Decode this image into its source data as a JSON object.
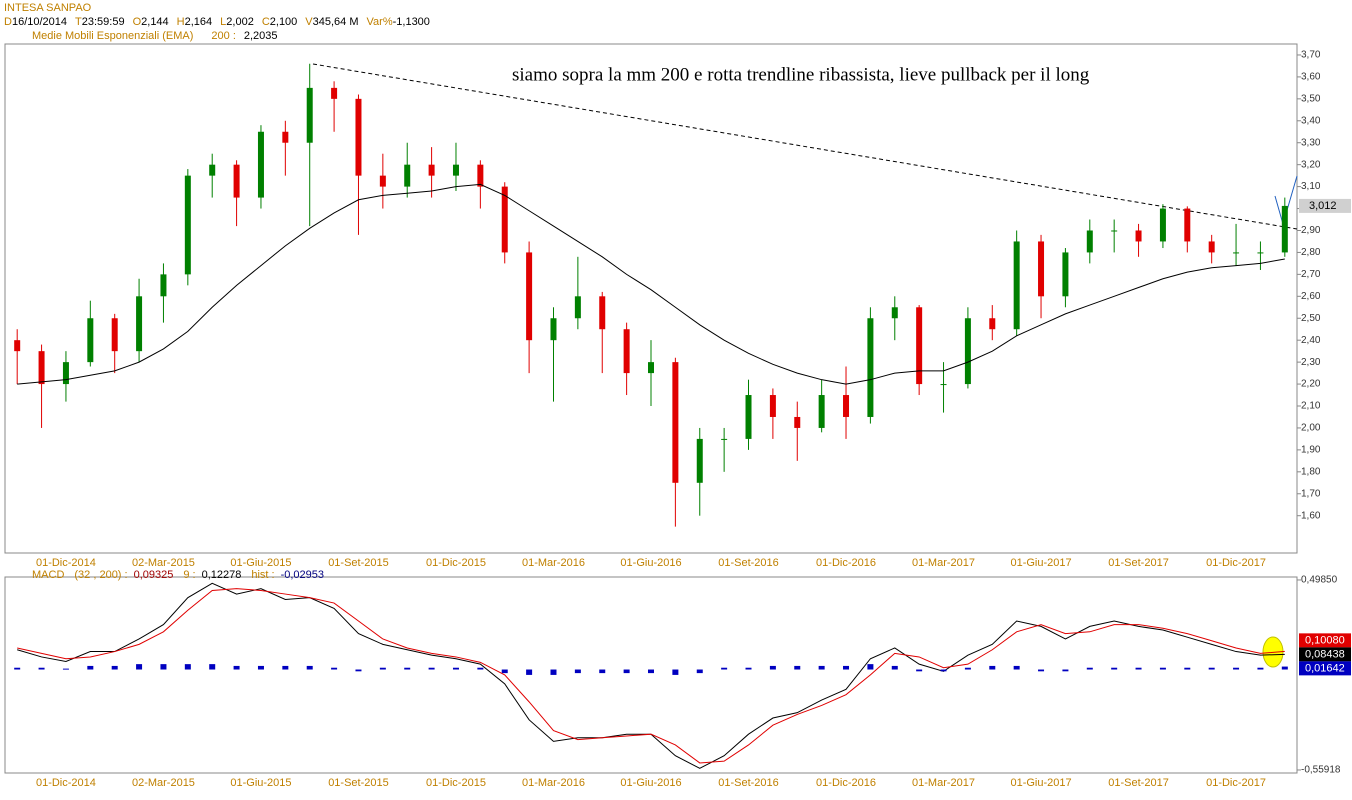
{
  "chart_data": [
    {
      "type": "candlestick",
      "title": "INTESA SANPAO",
      "info": [
        [
          "D",
          "16/10/2014"
        ],
        [
          "T",
          "23:59:59"
        ],
        [
          "O",
          "2,144"
        ],
        [
          "H",
          "2,164"
        ],
        [
          "L",
          "2,002"
        ],
        [
          "C",
          "2,100"
        ],
        [
          "V",
          "345,64 M"
        ],
        [
          "Var%",
          "-1,1300"
        ]
      ],
      "annotation": "siamo sopra la mm 200 e rotta trendline ribassista, lieve pullback per il long",
      "categories": [
        null,
        null,
        "01-Dic-2014",
        null,
        null,
        null,
        "02-Mar-2015",
        null,
        null,
        null,
        "01-Giu-2015",
        null,
        null,
        null,
        "01-Set-2015",
        null,
        null,
        null,
        "01-Dic-2015",
        null,
        null,
        null,
        "01-Mar-2016",
        null,
        null,
        null,
        "01-Giu-2016",
        null,
        null,
        null,
        "01-Set-2016",
        null,
        null,
        null,
        "01-Dic-2016",
        null,
        null,
        null,
        "01-Mar-2017",
        null,
        null,
        null,
        "01-Giu-2017",
        null,
        null,
        null,
        "01-Set-2017",
        null,
        null,
        null,
        "01-Dic-2017",
        null,
        null
      ],
      "open": [
        2.4,
        2.35,
        2.2,
        2.3,
        2.5,
        2.35,
        2.6,
        2.7,
        3.15,
        3.2,
        3.05,
        3.35,
        3.3,
        3.55,
        3.5,
        3.15,
        3.1,
        3.2,
        3.15,
        3.2,
        3.1,
        2.8,
        2.4,
        2.5,
        2.6,
        2.45,
        2.25,
        2.3,
        1.75,
        1.95,
        1.95,
        2.15,
        2.05,
        2.0,
        2.15,
        2.05,
        2.5,
        2.55,
        2.2,
        2.2,
        2.5,
        2.45,
        2.85,
        2.6,
        2.8,
        2.9,
        2.9,
        2.85,
        3.0,
        2.85,
        2.8,
        2.8,
        2.8
      ],
      "high": [
        2.45,
        2.38,
        2.35,
        2.58,
        2.52,
        2.68,
        2.75,
        3.18,
        3.25,
        3.22,
        3.38,
        3.4,
        3.66,
        3.58,
        3.52,
        3.25,
        3.3,
        3.28,
        3.3,
        3.22,
        3.12,
        2.85,
        2.55,
        2.78,
        2.62,
        2.48,
        2.4,
        2.32,
        2.0,
        2.0,
        2.22,
        2.18,
        2.12,
        2.22,
        2.28,
        2.55,
        2.6,
        2.56,
        2.3,
        2.55,
        2.56,
        2.9,
        2.88,
        2.82,
        2.95,
        2.95,
        2.93,
        3.02,
        3.01,
        2.88,
        2.93,
        2.85,
        3.05
      ],
      "low": [
        2.2,
        2.0,
        2.12,
        2.28,
        2.25,
        2.3,
        2.48,
        2.65,
        3.05,
        2.92,
        3.0,
        3.15,
        2.92,
        3.35,
        2.88,
        3.0,
        3.05,
        3.05,
        3.08,
        3.0,
        2.75,
        2.25,
        2.12,
        2.45,
        2.25,
        2.15,
        2.1,
        1.55,
        1.6,
        1.8,
        1.9,
        1.95,
        1.85,
        1.98,
        1.95,
        2.02,
        2.4,
        2.15,
        2.07,
        2.18,
        2.4,
        2.42,
        2.5,
        2.55,
        2.75,
        2.8,
        2.78,
        2.82,
        2.8,
        2.75,
        2.74,
        2.72,
        2.78
      ],
      "close": [
        2.35,
        2.2,
        2.3,
        2.5,
        2.35,
        2.6,
        2.7,
        3.15,
        3.2,
        3.05,
        3.35,
        3.3,
        3.55,
        3.5,
        3.15,
        3.1,
        3.2,
        3.15,
        3.2,
        3.1,
        2.8,
        2.4,
        2.5,
        2.6,
        2.45,
        2.25,
        2.3,
        1.75,
        1.95,
        1.95,
        2.15,
        2.05,
        2.0,
        2.15,
        2.05,
        2.5,
        2.55,
        2.2,
        2.2,
        2.5,
        2.45,
        2.85,
        2.6,
        2.8,
        2.9,
        2.9,
        2.85,
        3.0,
        2.85,
        2.8,
        2.8,
        2.8,
        3.012
      ],
      "close_labels": {
        "52": "3,012"
      },
      "up_color": "#008000",
      "down_color": "#e00000",
      "ema": {
        "name": "Medie Mobili Esponenziali (EMA)",
        "period": "200 :",
        "last": "2,2035",
        "color": "#000000",
        "values": [
          2.2,
          2.21,
          2.22,
          2.24,
          2.26,
          2.3,
          2.36,
          2.44,
          2.55,
          2.65,
          2.74,
          2.83,
          2.91,
          2.98,
          3.04,
          3.06,
          3.07,
          3.08,
          3.1,
          3.11,
          3.06,
          2.99,
          2.92,
          2.85,
          2.78,
          2.7,
          2.63,
          2.55,
          2.47,
          2.4,
          2.34,
          2.29,
          2.25,
          2.22,
          2.2,
          2.22,
          2.25,
          2.26,
          2.26,
          2.3,
          2.35,
          2.42,
          2.47,
          2.52,
          2.56,
          2.6,
          2.64,
          2.68,
          2.71,
          2.73,
          2.74,
          2.75,
          2.77
        ]
      },
      "ylim": [
        1.43,
        3.75
      ],
      "yticks": [
        {
          "value": 1.6,
          "label": "1,60"
        },
        {
          "value": 1.7,
          "label": "1,70"
        },
        {
          "value": 1.8,
          "label": "1,80"
        },
        {
          "value": 1.9,
          "label": "1,90"
        },
        {
          "value": 2.0,
          "label": "2,00"
        },
        {
          "value": 2.1,
          "label": "2,10"
        },
        {
          "value": 2.2,
          "label": "2,20"
        },
        {
          "value": 2.3,
          "label": "2,30"
        },
        {
          "value": 2.4,
          "label": "2,40"
        },
        {
          "value": 2.5,
          "label": "2,50"
        },
        {
          "value": 2.6,
          "label": "2,60"
        },
        {
          "value": 2.7,
          "label": "2,70"
        },
        {
          "value": 2.8,
          "label": "2,80"
        },
        {
          "value": 2.9,
          "label": "2,90"
        },
        {
          "value": 3.0,
          "label": "3,00"
        },
        {
          "value": 3.1,
          "label": "3,10"
        },
        {
          "value": 3.2,
          "label": "3,20"
        },
        {
          "value": 3.3,
          "label": "3,30"
        },
        {
          "value": 3.4,
          "label": "3,40"
        },
        {
          "value": 3.5,
          "label": "3,50"
        },
        {
          "value": 3.6,
          "label": "3,60"
        },
        {
          "value": 3.7,
          "label": "3,70"
        }
      ]
    },
    {
      "type": "macd",
      "title": "MACD",
      "readout": [
        [
          "(32 , 200) :",
          "0,09325"
        ],
        [
          "9 :",
          "0,12278"
        ],
        [
          "hist :",
          "-0,02953"
        ]
      ],
      "series": [
        {
          "color": "#000000",
          "values": [
            0.11,
            0.07,
            0.045,
            0.1,
            0.1,
            0.17,
            0.25,
            0.4,
            0.48,
            0.42,
            0.45,
            0.39,
            0.4,
            0.34,
            0.2,
            0.14,
            0.11,
            0.08,
            0.06,
            0.03,
            -0.08,
            -0.28,
            -0.4,
            -0.38,
            -0.38,
            -0.36,
            -0.36,
            -0.48,
            -0.55,
            -0.48,
            -0.36,
            -0.27,
            -0.24,
            -0.17,
            -0.11,
            0.06,
            0.12,
            0.03,
            -0.01,
            0.08,
            0.14,
            0.27,
            0.24,
            0.17,
            0.24,
            0.27,
            0.24,
            0.22,
            0.18,
            0.14,
            0.1,
            0.08,
            0.08438
          ],
          "value_labels": {
            "52": "0,08438"
          }
        },
        {
          "color": "#e00000",
          "values": [
            0.12,
            0.09,
            0.06,
            0.07,
            0.1,
            0.14,
            0.21,
            0.33,
            0.44,
            0.45,
            0.44,
            0.42,
            0.4,
            0.37,
            0.27,
            0.17,
            0.12,
            0.09,
            0.07,
            0.04,
            -0.03,
            -0.18,
            -0.34,
            -0.39,
            -0.38,
            -0.37,
            -0.36,
            -0.42,
            -0.52,
            -0.51,
            -0.42,
            -0.31,
            -0.25,
            -0.2,
            -0.14,
            -0.03,
            0.09,
            0.07,
            0.01,
            0.03,
            0.11,
            0.21,
            0.25,
            0.2,
            0.21,
            0.25,
            0.25,
            0.23,
            0.2,
            0.16,
            0.12,
            0.09,
            0.1008
          ],
          "value_labels": {
            "52": "0,10080"
          }
        },
        {
          "type": "histogram",
          "color": "#0000c0",
          "values": [
            0.01,
            0.01,
            0.005,
            0.02,
            0.02,
            0.03,
            0.03,
            0.03,
            0.03,
            0.02,
            0.02,
            0.02,
            0.02,
            0.01,
            -0.01,
            0.01,
            0.01,
            0.01,
            0.01,
            0.01,
            -0.02,
            -0.03,
            -0.03,
            -0.02,
            -0.02,
            -0.02,
            -0.02,
            -0.03,
            -0.02,
            0.01,
            0.01,
            0.02,
            0.02,
            0.02,
            0.02,
            0.03,
            0.02,
            -0.01,
            -0.01,
            0.01,
            0.02,
            0.02,
            -0.01,
            -0.01,
            0.01,
            0.01,
            0.01,
            0.01,
            0.01,
            0.01,
            0.01,
            0.01,
            0.01642
          ],
          "value_labels": {
            "52": "0,01642"
          }
        }
      ],
      "ylim": [
        -0.576,
        0.515
      ],
      "yticks": [
        {
          "value": 0.4985,
          "label": "0,49850"
        },
        {
          "value": -0.55918,
          "label": "-0,55918"
        }
      ]
    }
  ]
}
